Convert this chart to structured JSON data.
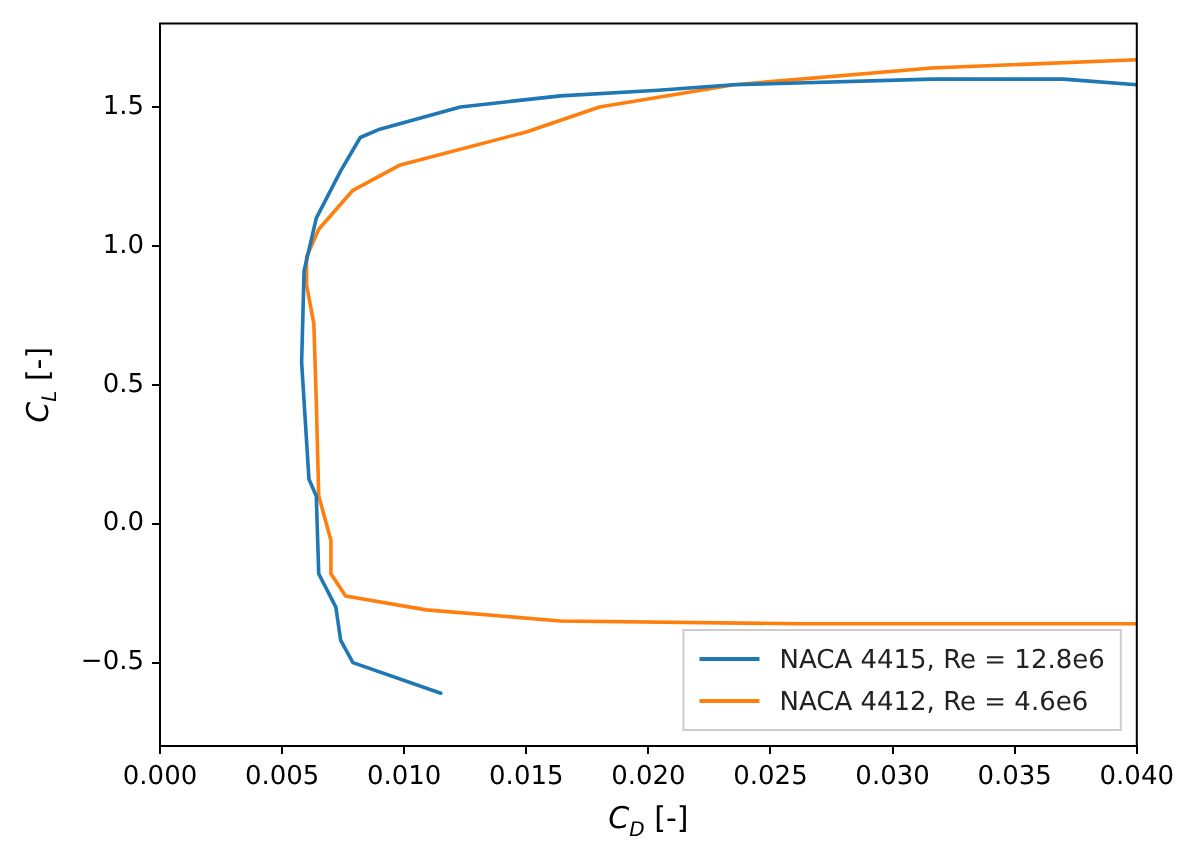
{
  "chart_data": {
    "type": "line",
    "xlabel": "C$_{D}$ [-]",
    "ylabel": "C$_{L}$ [-]",
    "xlim": [
      0,
      0.04
    ],
    "ylim": [
      -0.8,
      1.8
    ],
    "xticks": [
      {
        "value": 0,
        "label": "0.000"
      },
      0.005,
      {
        "value": 0.01,
        "label": "0.010"
      },
      0.015,
      {
        "value": 0.02,
        "label": "0.020"
      },
      0.025,
      {
        "value": 0.03,
        "label": "0.030"
      },
      0.035,
      {
        "value": 0.04,
        "label": "0.040"
      }
    ],
    "yticks": [
      {
        "value": -0.5,
        "label": "−0.5"
      },
      {
        "value": 0,
        "label": "0.0"
      },
      {
        "value": 0.5,
        "label": "0.5"
      },
      {
        "value": 1,
        "label": "1.0"
      },
      {
        "value": 1.5,
        "label": "1.5"
      }
    ],
    "grid": false,
    "legend": "bottom right",
    "marker": "none",
    "line_style": "solid",
    "series": [
      {
        "name": "NACA 4415, Re = 12.8e6",
        "color": "#1f77b4",
        "x": [
          0.0115,
          0.0079,
          0.0074,
          0.0072,
          0.0065,
          0.0064,
          0.0061,
          0.0059,
          0.0058,
          0.0059,
          0.0064,
          0.0074,
          0.0082,
          0.009,
          0.0123,
          0.0164,
          0.0204,
          0.0235,
          0.0316,
          0.037,
          0.04
        ],
        "values": [
          -0.61,
          -0.5,
          -0.42,
          -0.3,
          -0.18,
          0.1,
          0.16,
          0.44,
          0.58,
          0.91,
          1.1,
          1.27,
          1.39,
          1.42,
          1.5,
          1.54,
          1.56,
          1.58,
          1.6,
          1.6,
          1.58
        ]
      },
      {
        "name": "NACA 4412, Re = 4.6e6",
        "color": "#ff7f0e",
        "x": [
          0.04,
          0.0316,
          0.0235,
          0.018,
          0.015,
          0.0098,
          0.0079,
          0.0065,
          0.006,
          0.006,
          0.0063,
          0.0064,
          0.0065,
          0.007,
          0.007,
          0.0076,
          0.0109,
          0.0164,
          0.0262,
          0.04
        ],
        "values": [
          1.67,
          1.64,
          1.58,
          1.5,
          1.41,
          1.29,
          1.2,
          1.06,
          0.96,
          0.86,
          0.72,
          0.44,
          0.1,
          -0.06,
          -0.18,
          -0.26,
          -0.31,
          -0.35,
          -0.36,
          -0.36
        ]
      }
    ]
  }
}
